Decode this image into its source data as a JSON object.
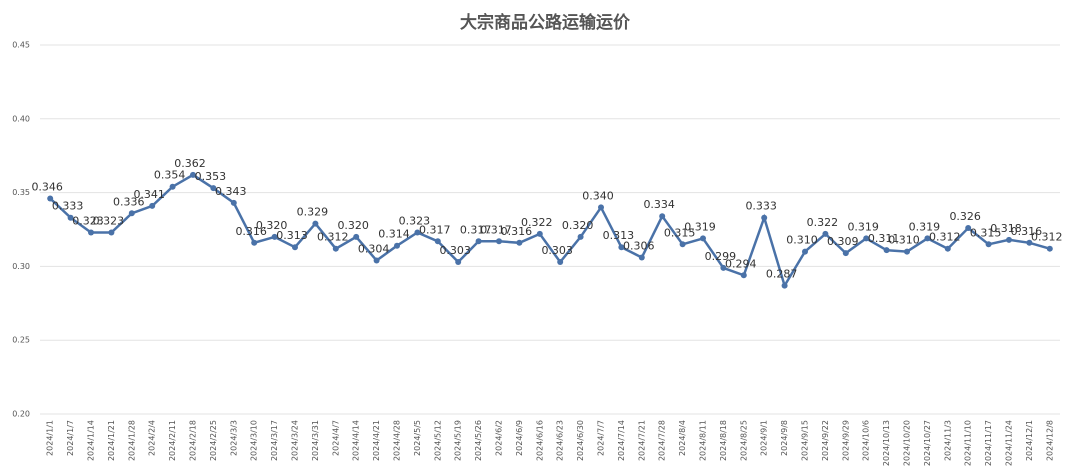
{
  "chart_data": {
    "type": "line",
    "title": "大宗商品公路运输运价",
    "categories": [
      "2024/1/1",
      "2024/1/7",
      "2024/1/14",
      "2024/1/21",
      "2024/1/28",
      "2024/2/4",
      "2024/2/11",
      "2024/2/18",
      "2024/2/25",
      "2024/3/3",
      "2024/3/10",
      "2024/3/17",
      "2024/3/24",
      "2024/3/31",
      "2024/4/7",
      "2024/4/14",
      "2024/4/21",
      "2024/4/28",
      "2024/5/5",
      "2024/5/12",
      "2024/5/19",
      "2024/5/26",
      "2024/6/2",
      "2024/6/9",
      "2024/6/16",
      "2024/6/23",
      "2024/6/30",
      "2024/7/7",
      "2024/7/14",
      "2024/7/21",
      "2024/7/28",
      "2024/8/4",
      "2024/8/11",
      "2024/8/18",
      "2024/8/25",
      "2024/9/1",
      "2024/9/8",
      "2024/9/15",
      "2024/9/22",
      "2024/9/29",
      "2024/10/6",
      "2024/10/13",
      "2024/10/20",
      "2024/10/27",
      "2024/11/3",
      "2024/11/10",
      "2024/11/17",
      "2024/11/24",
      "2024/12/1",
      "2024/12/8"
    ],
    "values": [
      0.346,
      0.333,
      0.323,
      0.323,
      0.336,
      0.341,
      0.354,
      0.362,
      0.353,
      0.343,
      0.316,
      0.32,
      0.313,
      0.329,
      0.312,
      0.32,
      0.304,
      0.314,
      0.323,
      0.317,
      0.303,
      0.317,
      0.317,
      0.316,
      0.322,
      0.303,
      0.32,
      0.34,
      0.313,
      0.306,
      0.334,
      0.315,
      0.319,
      0.299,
      0.294,
      0.333,
      0.287,
      0.31,
      0.322,
      0.309,
      0.319,
      0.311,
      0.31,
      0.319,
      0.312,
      0.326,
      0.315,
      0.318,
      0.316,
      0.312
    ],
    "value_labels": [
      "0.346",
      "0.333",
      "0.323",
      "0.323",
      "0.336",
      "0.341",
      "0.354",
      "0.362",
      "0.353",
      "0.343",
      "0.316",
      "0.320",
      "0.313",
      "0.329",
      "0.312",
      "0.320",
      "0.304",
      "0.314",
      "0.323",
      "0.317",
      "0.303",
      "0.317",
      "0.317",
      "0.316",
      "0.322",
      "0.303",
      "0.320",
      "0.340",
      "0.313",
      "0.306",
      "0.334",
      "0.315",
      "0.319",
      "0.299",
      "0.294",
      "0.333",
      "0.287",
      "0.310",
      "0.322",
      "0.309",
      "0.319",
      "0.311",
      "0.310",
      "0.319",
      "0.312",
      "0.326",
      "0.315",
      "0.318",
      "0.316",
      "0.312"
    ],
    "color": "#4a72a8",
    "ylim": [
      0.2,
      0.45
    ],
    "yticks": [
      {
        "value": 0.2,
        "label": "0.20"
      },
      {
        "value": 0.25,
        "label": "0.25"
      },
      {
        "value": 0.3,
        "label": "0.30"
      },
      {
        "value": 0.35,
        "label": "0.35"
      },
      {
        "value": 0.4,
        "label": "0.40"
      },
      {
        "value": 0.45,
        "label": "0.45"
      }
    ],
    "grid": true
  }
}
